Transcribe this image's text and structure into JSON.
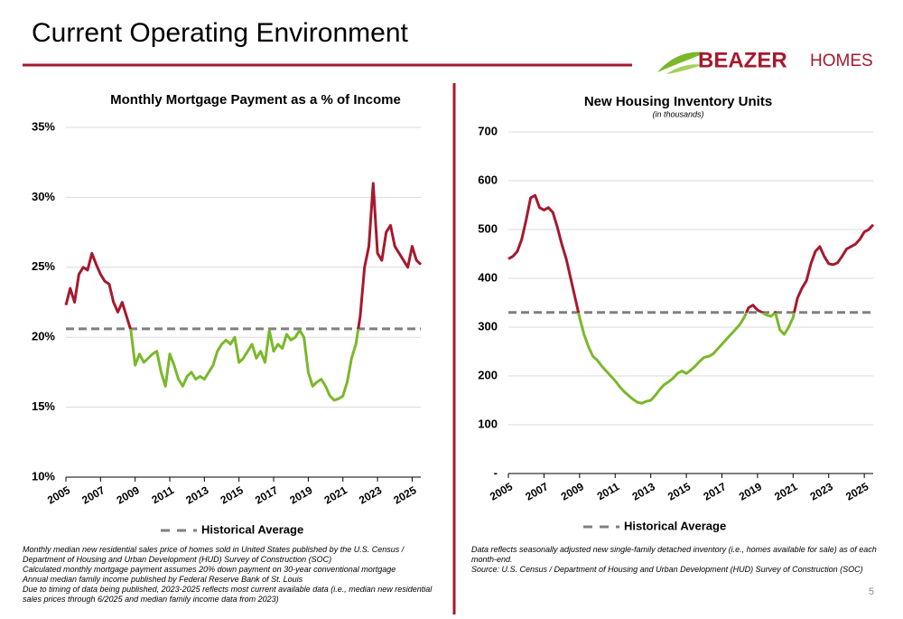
{
  "header": {
    "title": "Current Operating Environment",
    "logo_bold": "BEAZER",
    "logo_light": "HOMES"
  },
  "page_number": 5,
  "chart_data": [
    {
      "type": "line",
      "title": "Monthly Mortgage Payment as a % of Income",
      "x": [
        2005,
        2005.25,
        2005.5,
        2005.75,
        2006,
        2006.25,
        2006.5,
        2006.75,
        2007,
        2007.25,
        2007.5,
        2007.75,
        2008,
        2008.25,
        2008.5,
        2008.75,
        2009,
        2009.25,
        2009.5,
        2009.75,
        2010,
        2010.25,
        2010.5,
        2010.75,
        2011,
        2011.25,
        2011.5,
        2011.75,
        2012,
        2012.25,
        2012.5,
        2012.75,
        2013,
        2013.25,
        2013.5,
        2013.75,
        2014,
        2014.25,
        2014.5,
        2014.75,
        2015,
        2015.25,
        2015.5,
        2015.75,
        2016,
        2016.25,
        2016.5,
        2016.75,
        2017,
        2017.25,
        2017.5,
        2017.75,
        2018,
        2018.25,
        2018.5,
        2018.75,
        2019,
        2019.25,
        2019.5,
        2019.75,
        2020,
        2020.25,
        2020.5,
        2020.75,
        2021,
        2021.25,
        2021.5,
        2021.75,
        2022,
        2022.25,
        2022.5,
        2022.75,
        2023,
        2023.25,
        2023.5,
        2023.75,
        2024,
        2024.25,
        2024.5,
        2024.75,
        2025,
        2025.25,
        2025.5
      ],
      "series": [
        {
          "color_above": "#a6192e",
          "color_below": "#7ab829",
          "values": [
            22.3,
            23.5,
            22.5,
            24.5,
            25.0,
            24.8,
            26.0,
            25.2,
            24.5,
            24.0,
            23.8,
            22.5,
            21.8,
            22.5,
            21.5,
            20.5,
            18.0,
            18.8,
            18.2,
            18.5,
            18.8,
            19.0,
            17.5,
            16.5,
            18.8,
            18.0,
            17.0,
            16.5,
            17.2,
            17.5,
            17.0,
            17.2,
            17.0,
            17.5,
            18.0,
            19.0,
            19.5,
            19.8,
            19.5,
            20.0,
            18.2,
            18.5,
            19.0,
            19.5,
            18.5,
            19.0,
            18.2,
            20.5,
            19.0,
            19.5,
            19.2,
            20.2,
            19.8,
            20.0,
            20.5,
            20.0,
            17.5,
            16.5,
            16.8,
            17.0,
            16.5,
            15.8,
            15.5,
            15.6,
            15.8,
            16.8,
            18.5,
            19.5,
            21.5,
            25.0,
            26.5,
            31.0,
            26.0,
            25.5,
            27.5,
            28.0,
            26.5,
            26.0,
            25.5,
            25.0,
            26.5,
            25.5,
            25.2
          ]
        }
      ],
      "average": {
        "name": "Historical Average",
        "value": 20.6,
        "color": "#808080"
      },
      "xlim": [
        2005,
        2025.5
      ],
      "xticks": [
        2005,
        2007,
        2009,
        2011,
        2013,
        2015,
        2017,
        2019,
        2021,
        2023,
        2025
      ],
      "ylim": [
        10,
        35
      ],
      "yticks": [
        {
          "value": 10,
          "label": "10%"
        },
        {
          "value": 15,
          "label": "15%"
        },
        {
          "value": 20,
          "label": "20%"
        },
        {
          "value": 25,
          "label": "25%"
        },
        {
          "value": 30,
          "label": "30%"
        },
        {
          "value": 35,
          "label": "35%"
        }
      ],
      "grid": true,
      "notes": [
        "Monthly median new residential sales price of homes sold in United States published by the U.S. Census / Department of Housing and Urban Development (HUD) Survey of Construction (SOC)",
        "Calculated monthly mortgage payment assumes 20% down payment on 30-year conventional mortgage",
        "Annual median family income published by Federal Reserve Bank of St. Louis",
        "Due to timing of data being published, 2023-2025 reflects most current available data (i.e., median new residential sales prices through 6/2025 and median family income data from 2023)"
      ]
    },
    {
      "type": "line",
      "title": "New Housing Inventory Units",
      "subtitle": "(in thousands)",
      "x": [
        2005,
        2005.25,
        2005.5,
        2005.75,
        2006,
        2006.25,
        2006.5,
        2006.75,
        2007,
        2007.25,
        2007.5,
        2007.75,
        2008,
        2008.25,
        2008.5,
        2008.75,
        2009,
        2009.25,
        2009.5,
        2009.75,
        2010,
        2010.25,
        2010.5,
        2010.75,
        2011,
        2011.25,
        2011.5,
        2011.75,
        2012,
        2012.25,
        2012.5,
        2012.75,
        2013,
        2013.25,
        2013.5,
        2013.75,
        2014,
        2014.25,
        2014.5,
        2014.75,
        2015,
        2015.25,
        2015.5,
        2015.75,
        2016,
        2016.25,
        2016.5,
        2016.75,
        2017,
        2017.25,
        2017.5,
        2017.75,
        2018,
        2018.25,
        2018.5,
        2018.75,
        2019,
        2019.25,
        2019.5,
        2019.75,
        2020,
        2020.25,
        2020.5,
        2020.75,
        2021,
        2021.25,
        2021.5,
        2021.75,
        2022,
        2022.25,
        2022.5,
        2022.75,
        2023,
        2023.25,
        2023.5,
        2023.75,
        2024,
        2024.25,
        2024.5,
        2024.75,
        2025,
        2025.25,
        2025.5
      ],
      "series": [
        {
          "color_above": "#a6192e",
          "color_below": "#7ab829",
          "values": [
            440,
            445,
            455,
            480,
            520,
            565,
            570,
            545,
            540,
            545,
            535,
            505,
            470,
            440,
            400,
            360,
            320,
            285,
            260,
            240,
            232,
            220,
            210,
            200,
            190,
            178,
            168,
            160,
            152,
            146,
            144,
            148,
            150,
            160,
            172,
            182,
            188,
            195,
            205,
            210,
            205,
            212,
            220,
            230,
            238,
            240,
            245,
            255,
            265,
            275,
            285,
            295,
            305,
            320,
            340,
            345,
            335,
            330,
            325,
            322,
            330,
            295,
            285,
            300,
            320,
            360,
            380,
            395,
            430,
            455,
            465,
            445,
            430,
            428,
            432,
            445,
            460,
            465,
            470,
            480,
            495,
            500,
            510
          ]
        }
      ],
      "average": {
        "name": "Historical Average",
        "value": 330,
        "color": "#808080"
      },
      "xlim": [
        2005,
        2025.5
      ],
      "xticks": [
        2005,
        2007,
        2009,
        2011,
        2013,
        2015,
        2017,
        2019,
        2021,
        2023,
        2025
      ],
      "ylim": [
        0,
        700
      ],
      "yticks": [
        {
          "value": 0,
          "label": "-"
        },
        100,
        200,
        300,
        400,
        500,
        600,
        700
      ],
      "grid": true,
      "notes": [
        "Data reflects seasonally adjusted new single-family detached inventory (i.e., homes available for sale) as of each month-end.",
        "Source: U.S. Census / Department of Housing and Urban Development (HUD) Survey of Construction (SOC)"
      ]
    }
  ]
}
